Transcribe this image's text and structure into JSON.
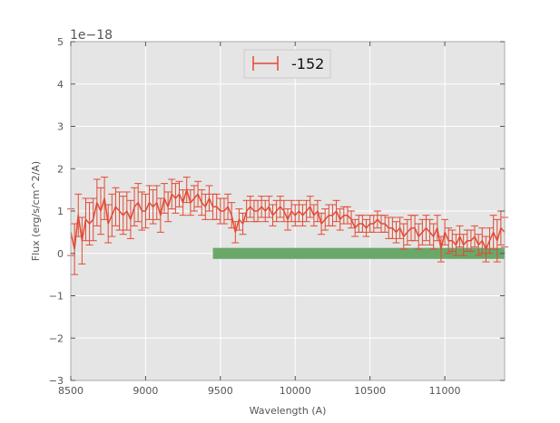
{
  "chart_data": {
    "type": "line",
    "title": "",
    "xlabel": "Wavelength (A)",
    "ylabel": "Flux (erg/s/cm^2/A)",
    "y_offset_label": "1e−18",
    "xlim": [
      8500,
      11400
    ],
    "ylim": [
      -3,
      5
    ],
    "x_ticks": [
      8500,
      9000,
      9500,
      10000,
      10500,
      11000
    ],
    "x_tick_labels": [
      "8500",
      "9000",
      "9500",
      "10000",
      "10500",
      "11000"
    ],
    "y_ticks": [
      -3,
      -2,
      -1,
      0,
      1,
      2,
      3,
      4,
      5
    ],
    "y_tick_labels": [
      "−3",
      "−2",
      "−1",
      "0",
      "1",
      "2",
      "3",
      "4",
      "5"
    ],
    "grid": true,
    "background": "#e5e5e5",
    "legend_placement": "top-center",
    "series": [
      {
        "name": "-152",
        "color": "#e24a33",
        "x": [
          8500,
          8525,
          8550,
          8575,
          8600,
          8625,
          8650,
          8675,
          8700,
          8725,
          8750,
          8775,
          8800,
          8825,
          8850,
          8875,
          8900,
          8925,
          8950,
          8975,
          9000,
          9025,
          9050,
          9075,
          9100,
          9125,
          9150,
          9175,
          9200,
          9225,
          9250,
          9275,
          9300,
          9325,
          9350,
          9375,
          9400,
          9425,
          9450,
          9475,
          9500,
          9525,
          9550,
          9575,
          9600,
          9625,
          9650,
          9675,
          9700,
          9725,
          9750,
          9775,
          9800,
          9825,
          9850,
          9875,
          9900,
          9925,
          9950,
          9975,
          10000,
          10025,
          10050,
          10075,
          10100,
          10125,
          10150,
          10175,
          10200,
          10225,
          10250,
          10275,
          10300,
          10325,
          10350,
          10375,
          10400,
          10425,
          10450,
          10475,
          10500,
          10525,
          10550,
          10575,
          10600,
          10625,
          10650,
          10675,
          10700,
          10725,
          10750,
          10775,
          10800,
          10825,
          10850,
          10875,
          10900,
          10925,
          10950,
          10975,
          11000,
          11025,
          11050,
          11075,
          11100,
          11125,
          11150,
          11175,
          11200,
          11225,
          11250,
          11275,
          11300,
          11325,
          11350,
          11375,
          11400
        ],
        "y": [
          0.5,
          0.1,
          0.9,
          0.3,
          0.8,
          0.7,
          0.8,
          1.2,
          1.0,
          1.3,
          0.7,
          0.9,
          1.1,
          1.0,
          0.9,
          1.0,
          0.8,
          1.1,
          1.2,
          1.0,
          1.0,
          1.2,
          1.1,
          1.2,
          0.9,
          1.3,
          1.1,
          1.4,
          1.3,
          1.4,
          1.2,
          1.5,
          1.2,
          1.3,
          1.4,
          1.2,
          1.1,
          1.3,
          1.1,
          1.1,
          1.0,
          1.0,
          1.1,
          0.9,
          0.5,
          0.8,
          0.7,
          1.0,
          1.1,
          1.0,
          1.0,
          1.1,
          1.0,
          1.1,
          0.9,
          1.0,
          1.1,
          1.0,
          0.8,
          1.0,
          0.9,
          1.0,
          0.9,
          1.0,
          1.1,
          0.9,
          1.0,
          0.7,
          0.8,
          0.9,
          0.9,
          1.0,
          0.8,
          0.9,
          0.9,
          0.8,
          0.6,
          0.7,
          0.7,
          0.6,
          0.7,
          0.7,
          0.8,
          0.7,
          0.7,
          0.6,
          0.6,
          0.5,
          0.6,
          0.4,
          0.5,
          0.6,
          0.6,
          0.4,
          0.5,
          0.6,
          0.5,
          0.4,
          0.6,
          0.1,
          0.5,
          0.3,
          0.3,
          0.2,
          0.4,
          0.2,
          0.3,
          0.3,
          0.4,
          0.2,
          0.3,
          0.1,
          0.3,
          0.5,
          0.3,
          0.6,
          0.5
        ],
        "error": [
          0.55,
          0.6,
          0.5,
          0.55,
          0.5,
          0.5,
          0.5,
          0.55,
          0.55,
          0.5,
          0.45,
          0.5,
          0.45,
          0.45,
          0.45,
          0.45,
          0.45,
          0.45,
          0.45,
          0.45,
          0.4,
          0.4,
          0.4,
          0.4,
          0.4,
          0.35,
          0.35,
          0.35,
          0.35,
          0.3,
          0.3,
          0.3,
          0.3,
          0.3,
          0.3,
          0.3,
          0.3,
          0.3,
          0.3,
          0.3,
          0.3,
          0.3,
          0.3,
          0.3,
          0.25,
          0.25,
          0.25,
          0.25,
          0.25,
          0.25,
          0.25,
          0.25,
          0.25,
          0.25,
          0.25,
          0.25,
          0.25,
          0.25,
          0.25,
          0.25,
          0.25,
          0.25,
          0.25,
          0.25,
          0.25,
          0.25,
          0.25,
          0.25,
          0.25,
          0.25,
          0.25,
          0.25,
          0.25,
          0.2,
          0.2,
          0.2,
          0.2,
          0.2,
          0.2,
          0.2,
          0.2,
          0.2,
          0.2,
          0.2,
          0.2,
          0.25,
          0.25,
          0.25,
          0.25,
          0.3,
          0.3,
          0.3,
          0.3,
          0.3,
          0.3,
          0.3,
          0.3,
          0.3,
          0.3,
          0.3,
          0.3,
          0.3,
          0.25,
          0.25,
          0.25,
          0.25,
          0.25,
          0.25,
          0.25,
          0.25,
          0.3,
          0.3,
          0.3,
          0.4,
          0.5,
          0.4,
          0.35
        ]
      }
    ],
    "bands": [
      {
        "x_start": 9450,
        "x_end": 11400,
        "y_low": -0.13,
        "y_high": 0.13,
        "color": "#6aa86a"
      }
    ]
  }
}
